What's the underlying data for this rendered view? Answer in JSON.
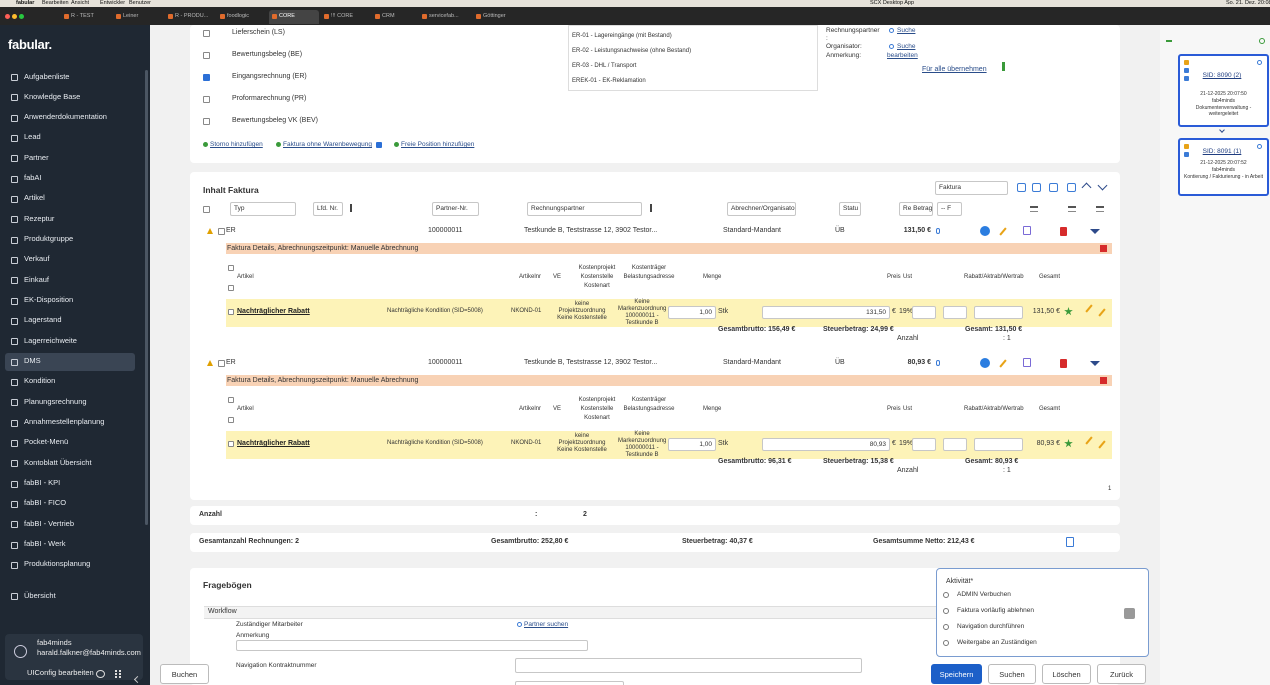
{
  "menubar": {
    "app": "fabular",
    "items": [
      "Bearbeiten",
      "Ansicht",
      "Entwickler",
      "Benutzer"
    ],
    "status": "SCX Desktop App",
    "clock": "So. 21. Dez. 20:08"
  },
  "tabs": [
    "R - TEST",
    "Leiner",
    "R - PRODU...",
    "foodlogic",
    "CORE",
    "!!! CORE",
    "CRM",
    "servicefab...",
    "Göttinger"
  ],
  "sidebar": {
    "logo": "fabular.",
    "items": [
      "Aufgabenliste",
      "Knowledge Base",
      "Anwenderdokumentation",
      "Lead",
      "Partner",
      "fabAI",
      "Artikel",
      "Rezeptur",
      "Produktgruppe",
      "Verkauf",
      "Einkauf",
      "EK-Disposition",
      "Lagerstand",
      "Lagerreichweite",
      "DMS",
      "Kondition",
      "Planungsrechnung",
      "Annahmestellenplanung",
      "Pocket-Menü",
      "Kontoblatt Übersicht",
      "fabBI - KPI",
      "fabBI - FICO",
      "fabBI - Vertrieb",
      "fabBI - Werk",
      "Produktionsplanung",
      "Übersicht"
    ],
    "user_name": "fab4minds",
    "user_email": "harald.falkner@fab4minds.com",
    "uiconfig": "UIConfig bearbeiten"
  },
  "doc_types": [
    "Lieferschein (LS)",
    "Bewertungsbeleg (BE)",
    "Eingangsrechnung (ER)",
    "Proformarechnung (PR)",
    "Bewertungsbeleg VK (BEV)"
  ],
  "doc_links": [
    "Storno hinzufügen",
    "Faktura ohne Warenbewegung",
    "Freie Position hinzufügen"
  ],
  "doc_subtypes": [
    "ER-01 - Lagereingänge (mit Bestand)",
    "ER-02 - Leistungsnachweise (ohne Bestand)",
    "ER-03 - DHL / Transport",
    "EREK-01 - EK-Reklamation"
  ],
  "doc_meta": {
    "partner_label": "Rechnungspartner",
    "partner_colon": ":",
    "partner_link": "Suche",
    "organizer_label": "Organisator:",
    "organizer_link": "Suche",
    "note_label": "Anmerkung:",
    "note_link": "bearbeiten",
    "apply_all": "Für alle übernehmen"
  },
  "invoice_list": {
    "title": "Inhalt Faktura",
    "view_select": "Faktura",
    "filters": [
      "Typ",
      "Lfd. Nr.",
      "Partner-Nr.",
      "Rechnungspartner",
      "Abrechner/Organisator",
      "Statu",
      "Re Betrag",
      "-- F"
    ],
    "position_headers": [
      "Artikel",
      "Artikelnr",
      "VE",
      "Kostenprojekt Kostenstelle Kostenart",
      "Kostenträger Belastungsadresse",
      "Menge",
      "Preis",
      "Ust",
      "Rabatt/Aktrab/Wertrab",
      "Gesamt"
    ],
    "invoices": [
      {
        "type": "ER",
        "partner_nr": "100000011",
        "partner": "Testkunde B, Teststrasse 12, 3902 Testor...",
        "organizer": "Standard-Mandant",
        "status": "ÜB",
        "amount": "131,50 €",
        "details": "Faktura Details, Abrechnungszeitpunkt: Manuelle Abrechnung",
        "position": {
          "article": "Nachträglicher Rabatt",
          "description": "Nachträgliche Kondition (SID=5008)",
          "article_nr": "NKOND-01",
          "cost_project": "keine Projektzuordnung Keine Kostenstelle",
          "cost_carrier": "Keine Markenzuordnung 100000011 - Testkunde B",
          "quantity": "1,00",
          "unit": "Stk",
          "price": "131,50",
          "currency": "€",
          "vat": "19%",
          "total": "131,50 €"
        },
        "gross": "Gesamtbrutto: 156,49 €",
        "tax": "Steuerbetrag: 24,99 €",
        "total": "Gesamt: 131,50 €",
        "count_label": "Anzahl",
        "count": ": 1"
      },
      {
        "type": "ER",
        "partner_nr": "100000011",
        "partner": "Testkunde B, Teststrasse 12, 3902 Testor...",
        "organizer": "Standard-Mandant",
        "status": "ÜB",
        "amount": "80,93 €",
        "details": "Faktura Details, Abrechnungszeitpunkt: Manuelle Abrechnung",
        "position": {
          "article": "Nachträglicher Rabatt",
          "description": "Nachträgliche Kondition (SID=5008)",
          "article_nr": "NKOND-01",
          "cost_project": "keine Projektzuordnung Keine Kostenstelle",
          "cost_carrier": "Keine Markenzuordnung 100000011 - Testkunde B",
          "quantity": "1,00",
          "unit": "Stk",
          "price": "80,93",
          "currency": "€",
          "vat": "19%",
          "total": "80,93 €"
        },
        "gross": "Gesamtbrutto: 96,31 €",
        "tax": "Steuerbetrag: 15,38 €",
        "total": "Gesamt: 80,93 €",
        "count_label": "Anzahl",
        "count": ": 1"
      }
    ],
    "page": "1"
  },
  "summary": {
    "count_label": "Anzahl",
    "colon": ":",
    "count": "2",
    "invoices_total": "Gesamtanzahl Rechnungen: 2",
    "gross": "Gesamtbrutto: 252,80 €",
    "tax": "Steuerbetrag: 40,37 €",
    "net": "Gesamtsumme Netto: 212,43 €"
  },
  "questionnaire": {
    "title": "Fragebögen",
    "workflow": "Workflow",
    "employee": "Zuständiger Mitarbeiter",
    "partner_search": "Partner suchen",
    "note": "Anmerkung",
    "contract_nav": "Navigation Kontraktnummer",
    "activity_label": "Aktivität*",
    "activities": [
      "ADMIN Verbuchen",
      "Faktura vorläufig ablehnen",
      "Navigation durchführen",
      "Weitergabe an Zuständigen"
    ]
  },
  "buttons": {
    "book": "Buchen",
    "save": "Speichern",
    "search": "Suchen",
    "delete": "Löschen",
    "back": "Zurück"
  },
  "history": [
    {
      "sid": "SID: 8090 (2)",
      "date": "21-12-2025 20:07:50",
      "user": "fab4minds",
      "status": "Dokumentenverwaltung - weitergeleitet"
    },
    {
      "sid": "SID: 8091 (1)",
      "date": "21-12-2025 20:07:52",
      "user": "fab4minds",
      "status": "Kontierung / Fakturierung - in Arbeit"
    }
  ]
}
